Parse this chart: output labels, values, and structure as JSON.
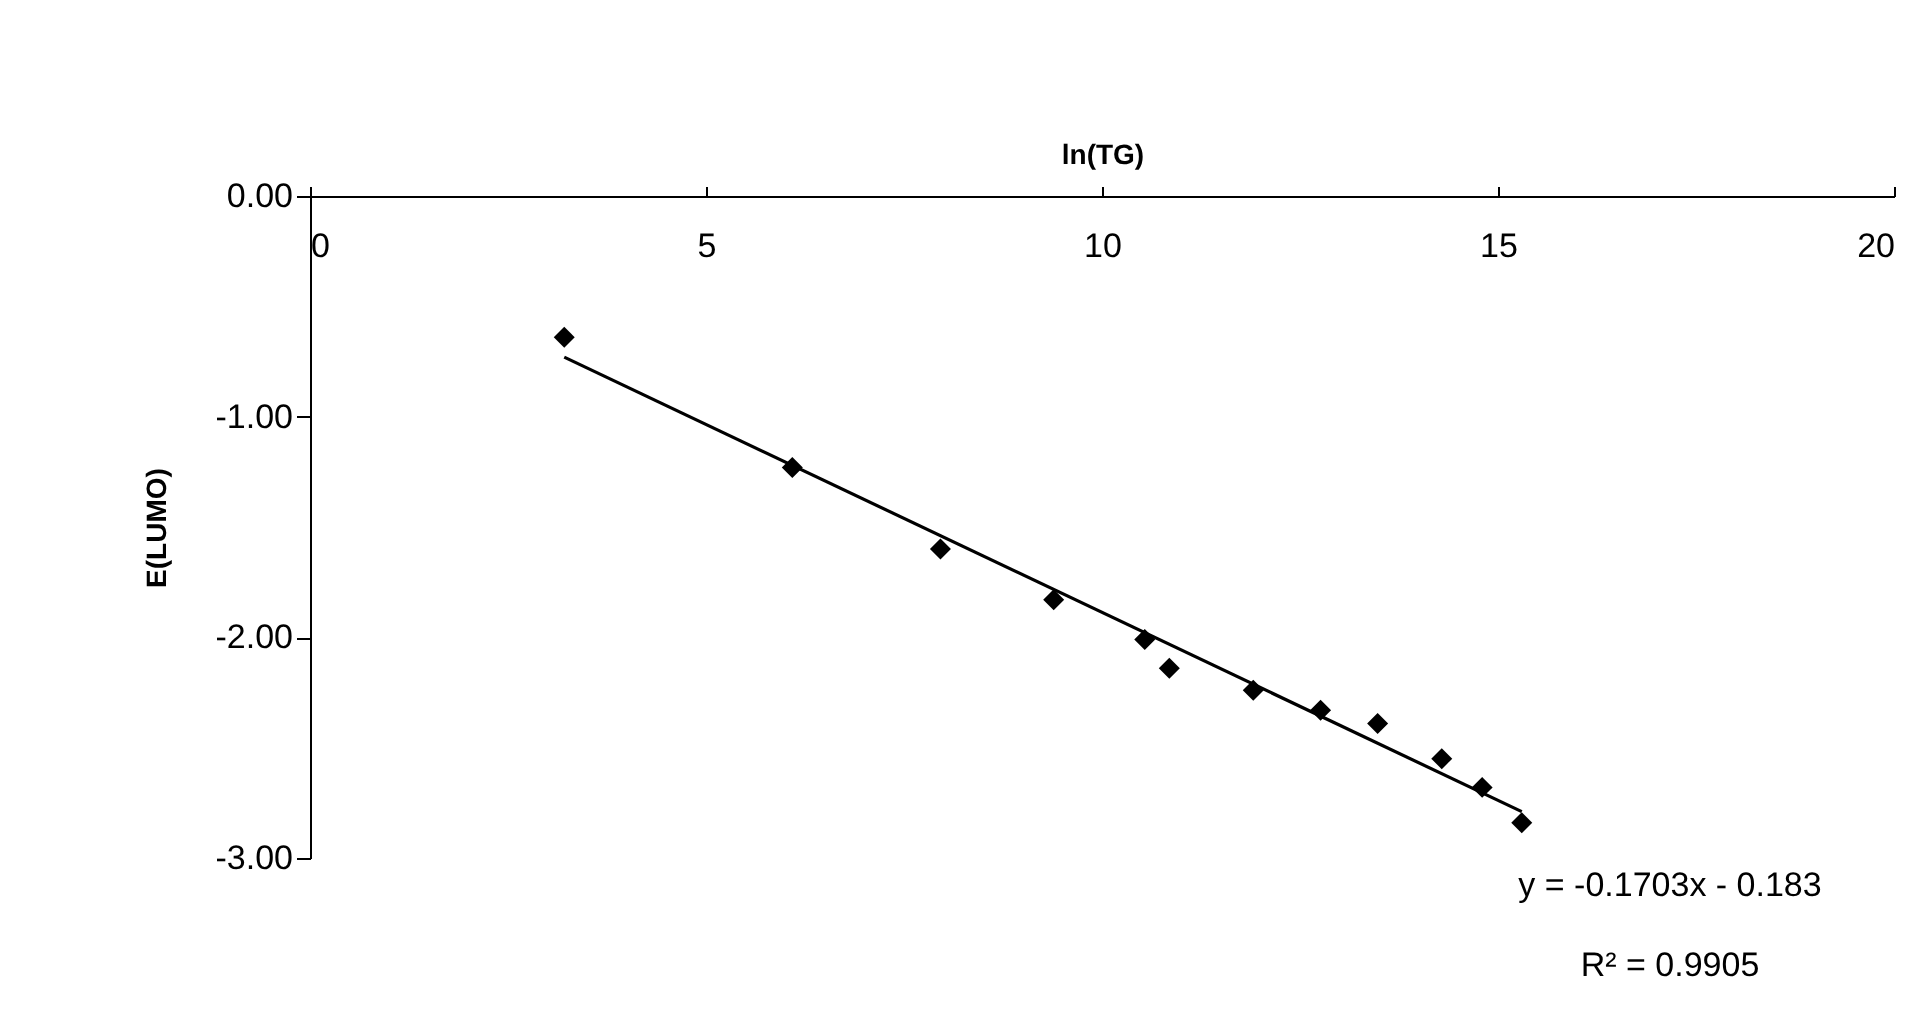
{
  "chart_data": {
    "type": "scatter",
    "xlabel": "ln(TG)",
    "ylabel": "E(LUMO)",
    "xlim": [
      0,
      20
    ],
    "xticks": [
      0,
      5,
      10,
      15,
      20
    ],
    "ylim": [
      -3,
      0
    ],
    "yticks": [
      {
        "value": 0,
        "label": "0.00"
      },
      {
        "value": -1,
        "label": "-1.00"
      },
      {
        "value": -2,
        "label": "-2.00"
      },
      {
        "value": -3,
        "label": "-3.00"
      }
    ],
    "grid": false,
    "series": [
      {
        "color": "#000000",
        "marker": "diamond",
        "x": [
          3.21,
          6.09,
          7.96,
          9.39,
          10.54,
          10.85,
          11.91,
          12.76,
          13.48,
          14.29,
          14.8,
          15.3
        ],
        "values": [
          -0.64,
          -1.23,
          -1.6,
          -1.83,
          -2.01,
          -2.14,
          -2.24,
          -2.33,
          -2.39,
          -2.55,
          -2.68,
          -2.84
        ]
      },
      {
        "type": "line",
        "color": "#000000",
        "line_style": "solid",
        "x": [
          3.21,
          15.3
        ],
        "values": [
          -0.73,
          -2.79
        ]
      }
    ],
    "annotations": [
      "y = -0.1703x - 0.183",
      "R² = 0.9905"
    ]
  }
}
